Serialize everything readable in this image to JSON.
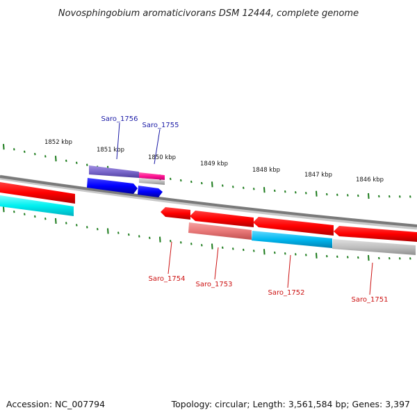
{
  "title": "Novosphingobium aromaticivorans DSM 12444, complete genome",
  "footer": {
    "accession": "Accession: NC_007794",
    "summary": "Topology: circular; Length: 3,561,584 bp; Genes: 3,397"
  },
  "ticks": [
    "1852 kbp",
    "1851 kbp",
    "1850 kbp",
    "1849 kbp",
    "1848 kbp",
    "1847 kbp",
    "1846 kbp"
  ],
  "genes_forward": [
    "Saro_1756",
    "Saro_1755"
  ],
  "genes_reverse": [
    "Saro_1754",
    "Saro_1753",
    "Saro_1752",
    "Saro_1751"
  ],
  "colors": {
    "backbone": "#8a8a8a",
    "tick": "#1a7a1a",
    "red": "#ff0000",
    "pink": "#f08080",
    "cyan": "#00bfff",
    "aqua": "#00ffff",
    "gray": "#c0c0c0",
    "blue": "#0000ff",
    "purple": "#7b68cc",
    "magenta": "#ff1493"
  }
}
